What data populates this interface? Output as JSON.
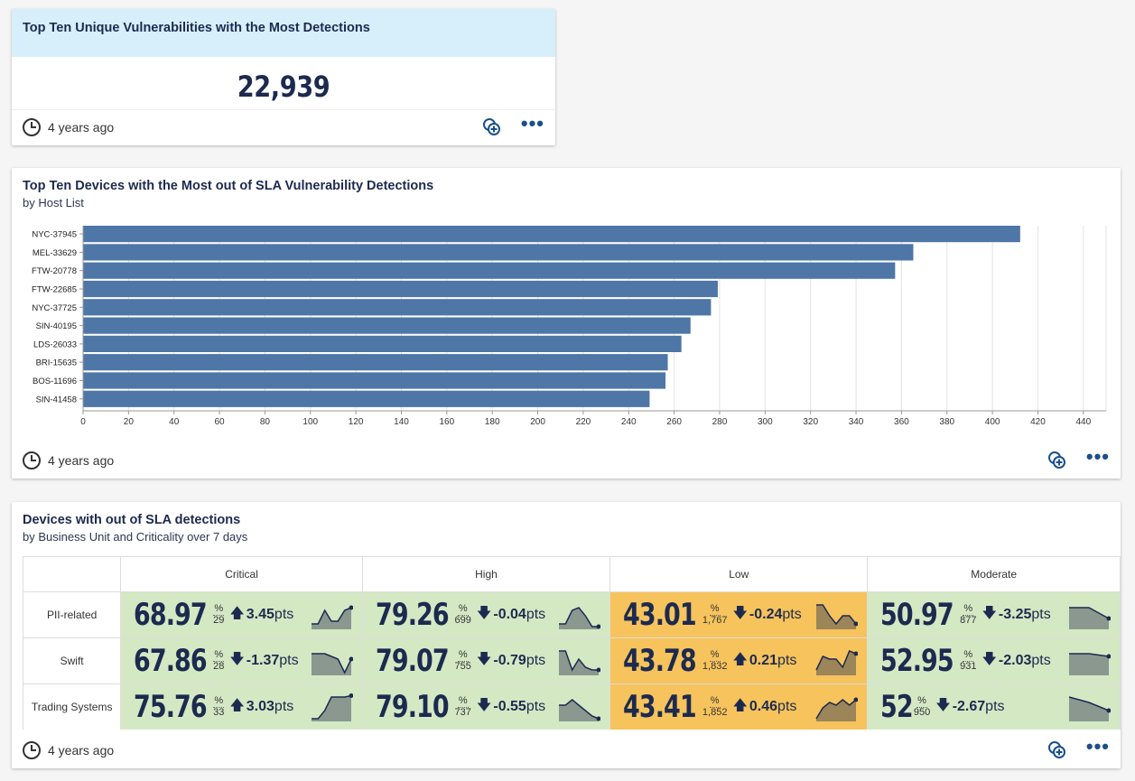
{
  "card1": {
    "title": "Top Ten Unique Vulnerabilities with the Most Detections",
    "value": "22,939",
    "updated": "4 years ago"
  },
  "card2": {
    "title": "Top Ten Devices with the Most out of SLA Vulnerability Detections",
    "subtitle": "by Host List",
    "updated": "4 years ago"
  },
  "chart_data": {
    "type": "bar",
    "orientation": "horizontal",
    "categories": [
      "NYC-37945",
      "MEL-33629",
      "FTW-20778",
      "FTW-22685",
      "NYC-37725",
      "SIN-40195",
      "LDS-26033",
      "BRI-15635",
      "BOS-11696",
      "SIN-41458"
    ],
    "values": [
      412,
      365,
      357,
      279,
      276,
      267,
      263,
      257,
      256,
      249
    ],
    "xlim": [
      0,
      450
    ],
    "xticks": [
      0,
      20,
      40,
      60,
      80,
      100,
      120,
      140,
      160,
      180,
      200,
      220,
      240,
      260,
      280,
      300,
      320,
      340,
      360,
      380,
      400,
      420,
      440
    ],
    "bar_color": "#4e76a7",
    "grid": true
  },
  "card3": {
    "title": "Devices with out of SLA detections",
    "subtitle": "by Business Unit and Criticality over 7 days",
    "updated": "4 years ago",
    "columns": [
      "Critical",
      "High",
      "Low",
      "Moderate"
    ],
    "rows": [
      {
        "label": "PII-related",
        "cells": [
          {
            "value": "68.97",
            "denom": "29",
            "dir": "up",
            "delta": "3.45",
            "color": "green",
            "spark": [
              0.2,
              0.2,
              0.7,
              0.3,
              0.3,
              0.7,
              0.8
            ]
          },
          {
            "value": "79.26",
            "denom": "699",
            "dir": "down",
            "delta": "-0.04",
            "color": "green",
            "spark": [
              0.2,
              0.2,
              0.7,
              0.8,
              0.5,
              0.1,
              0.1
            ]
          },
          {
            "value": "43.01",
            "denom": "1,767",
            "dir": "down",
            "delta": "-0.24",
            "color": "orange",
            "spark": [
              0.9,
              0.9,
              0.5,
              0.2,
              0.5,
              0.5,
              0.2
            ]
          },
          {
            "value": "50.97",
            "denom": "877",
            "dir": "down",
            "delta": "-3.25",
            "color": "green",
            "spark": [
              0.8,
              0.8,
              0.4
            ]
          }
        ]
      },
      {
        "label": "Swift",
        "cells": [
          {
            "value": "67.86",
            "denom": "28",
            "dir": "down",
            "delta": "-1.37",
            "color": "green",
            "spark": [
              0.8,
              0.8,
              0.8,
              0.7,
              0.6,
              0.1,
              0.6
            ]
          },
          {
            "value": "79.07",
            "denom": "755",
            "dir": "down",
            "delta": "-0.79",
            "color": "green",
            "spark": [
              0.9,
              0.9,
              0.2,
              0.6,
              0.3,
              0.2,
              0.2
            ]
          },
          {
            "value": "43.78",
            "denom": "1,832",
            "dir": "up",
            "delta": "0.21",
            "color": "orange",
            "spark": [
              0.2,
              0.7,
              0.6,
              0.6,
              0.3,
              0.9,
              0.8
            ]
          },
          {
            "value": "52.95",
            "denom": "931",
            "dir": "down",
            "delta": "-2.03",
            "color": "green",
            "spark": [
              0.8,
              0.8,
              0.7
            ]
          }
        ]
      },
      {
        "label": "Trading Systems",
        "cells": [
          {
            "value": "75.76",
            "denom": "33",
            "dir": "up",
            "delta": "3.03",
            "color": "green",
            "spark": [
              0.1,
              0.1,
              0.4,
              0.9,
              0.9,
              0.9,
              0.95
            ]
          },
          {
            "value": "79.10",
            "denom": "737",
            "dir": "down",
            "delta": "-0.55",
            "color": "green",
            "spark": [
              0.6,
              0.6,
              0.8,
              0.6,
              0.4,
              0.2,
              0.1
            ]
          },
          {
            "value": "43.41",
            "denom": "1,852",
            "dir": "up",
            "delta": "0.46",
            "color": "orange",
            "spark": [
              0.1,
              0.5,
              0.7,
              0.6,
              0.8,
              0.6,
              0.8
            ]
          },
          {
            "value": "52",
            "denom": "950",
            "dir": "down",
            "delta": "-2.67",
            "color": "green",
            "spark": [
              0.9,
              0.7,
              0.4
            ]
          }
        ]
      }
    ]
  },
  "labels": {
    "percent": "%",
    "pts": "pts",
    "up_arrow": "🡅",
    "down_arrow": "🡇"
  }
}
